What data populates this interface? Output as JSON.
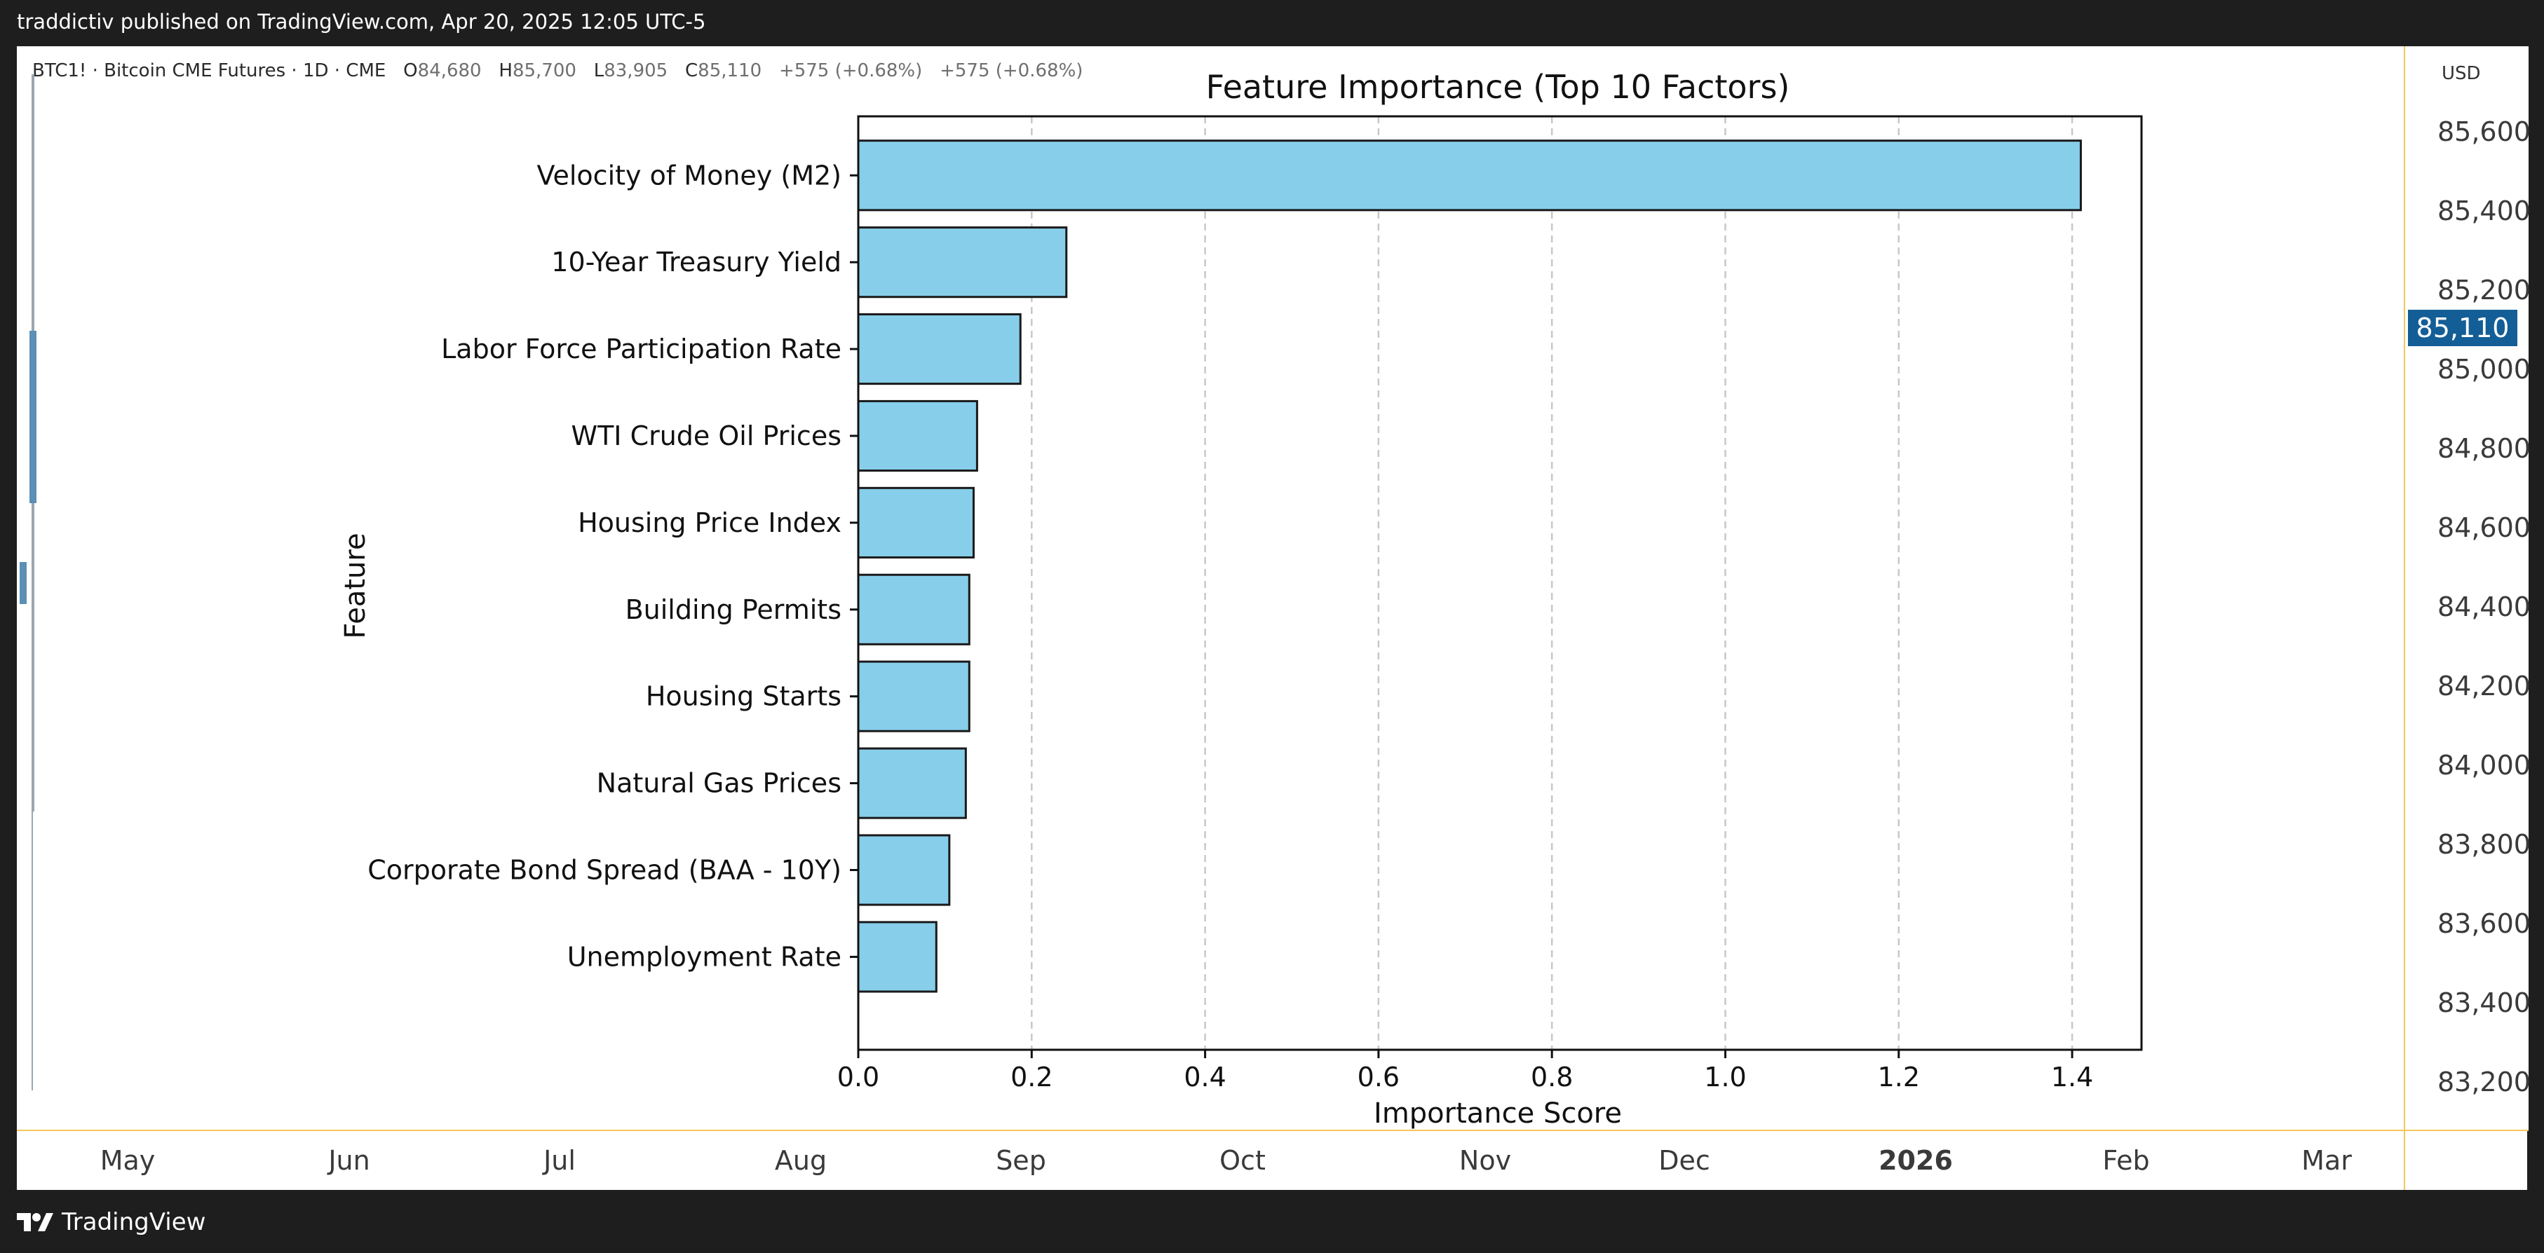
{
  "header": {
    "published": "traddictiv published on TradingView.com, Apr 20, 2025 12:05 UTC-5"
  },
  "legend": {
    "symbol": "BTC1! · Bitcoin CME Futures · 1D · CME",
    "o_label": "O",
    "o_value": "84,680",
    "h_label": "H",
    "h_value": "85,700",
    "l_label": "L",
    "l_value": "83,905",
    "c_label": "C",
    "c_value": "85,110",
    "change1": "+575 (+0.68%)",
    "change2": "+575 (+0.68%)"
  },
  "price_axis": {
    "currency": "USD",
    "ticks": [
      "85,600",
      "85,400",
      "85,200",
      "85,000",
      "84,800",
      "84,600",
      "84,400",
      "84,200",
      "84,000",
      "83,800",
      "83,600",
      "83,400",
      "83,200"
    ],
    "current_price": "85,110"
  },
  "time_axis": {
    "months": [
      "May",
      "Jun",
      "Jul",
      "Aug",
      "Sep",
      "Oct",
      "Nov",
      "Dec",
      "2026",
      "Feb",
      "Mar"
    ]
  },
  "footer": {
    "brand": "TradingView"
  },
  "colors": {
    "bar_fill": "#87ceeb",
    "bar_edge": "#1a1a1a",
    "price_badge": "#135e96",
    "axis_accent": "#f5c65c"
  },
  "chart_data": {
    "type": "bar",
    "orientation": "horizontal",
    "title": "Feature Importance (Top 10 Factors)",
    "xlabel": "Importance Score",
    "ylabel": "Feature",
    "categories": [
      "Velocity of Money (M2)",
      "10-Year Treasury Yield",
      "Labor Force Participation Rate",
      "WTI Crude Oil Prices",
      "Housing Price Index",
      "Building Permits",
      "Housing Starts",
      "Natural Gas Prices",
      "Corporate Bond Spread (BAA - 10Y)",
      "Unemployment Rate"
    ],
    "values": [
      1.41,
      0.24,
      0.187,
      0.137,
      0.133,
      0.128,
      0.128,
      0.124,
      0.105,
      0.09
    ],
    "xlim": [
      0,
      1.48
    ],
    "xticks": [
      0.0,
      0.2,
      0.4,
      0.6,
      0.8,
      1.0,
      1.2,
      1.4
    ],
    "xtick_labels": [
      "0.0",
      "0.2",
      "0.4",
      "0.6",
      "0.8",
      "1.0",
      "1.2",
      "1.4"
    ],
    "grid": "x-dashed"
  }
}
